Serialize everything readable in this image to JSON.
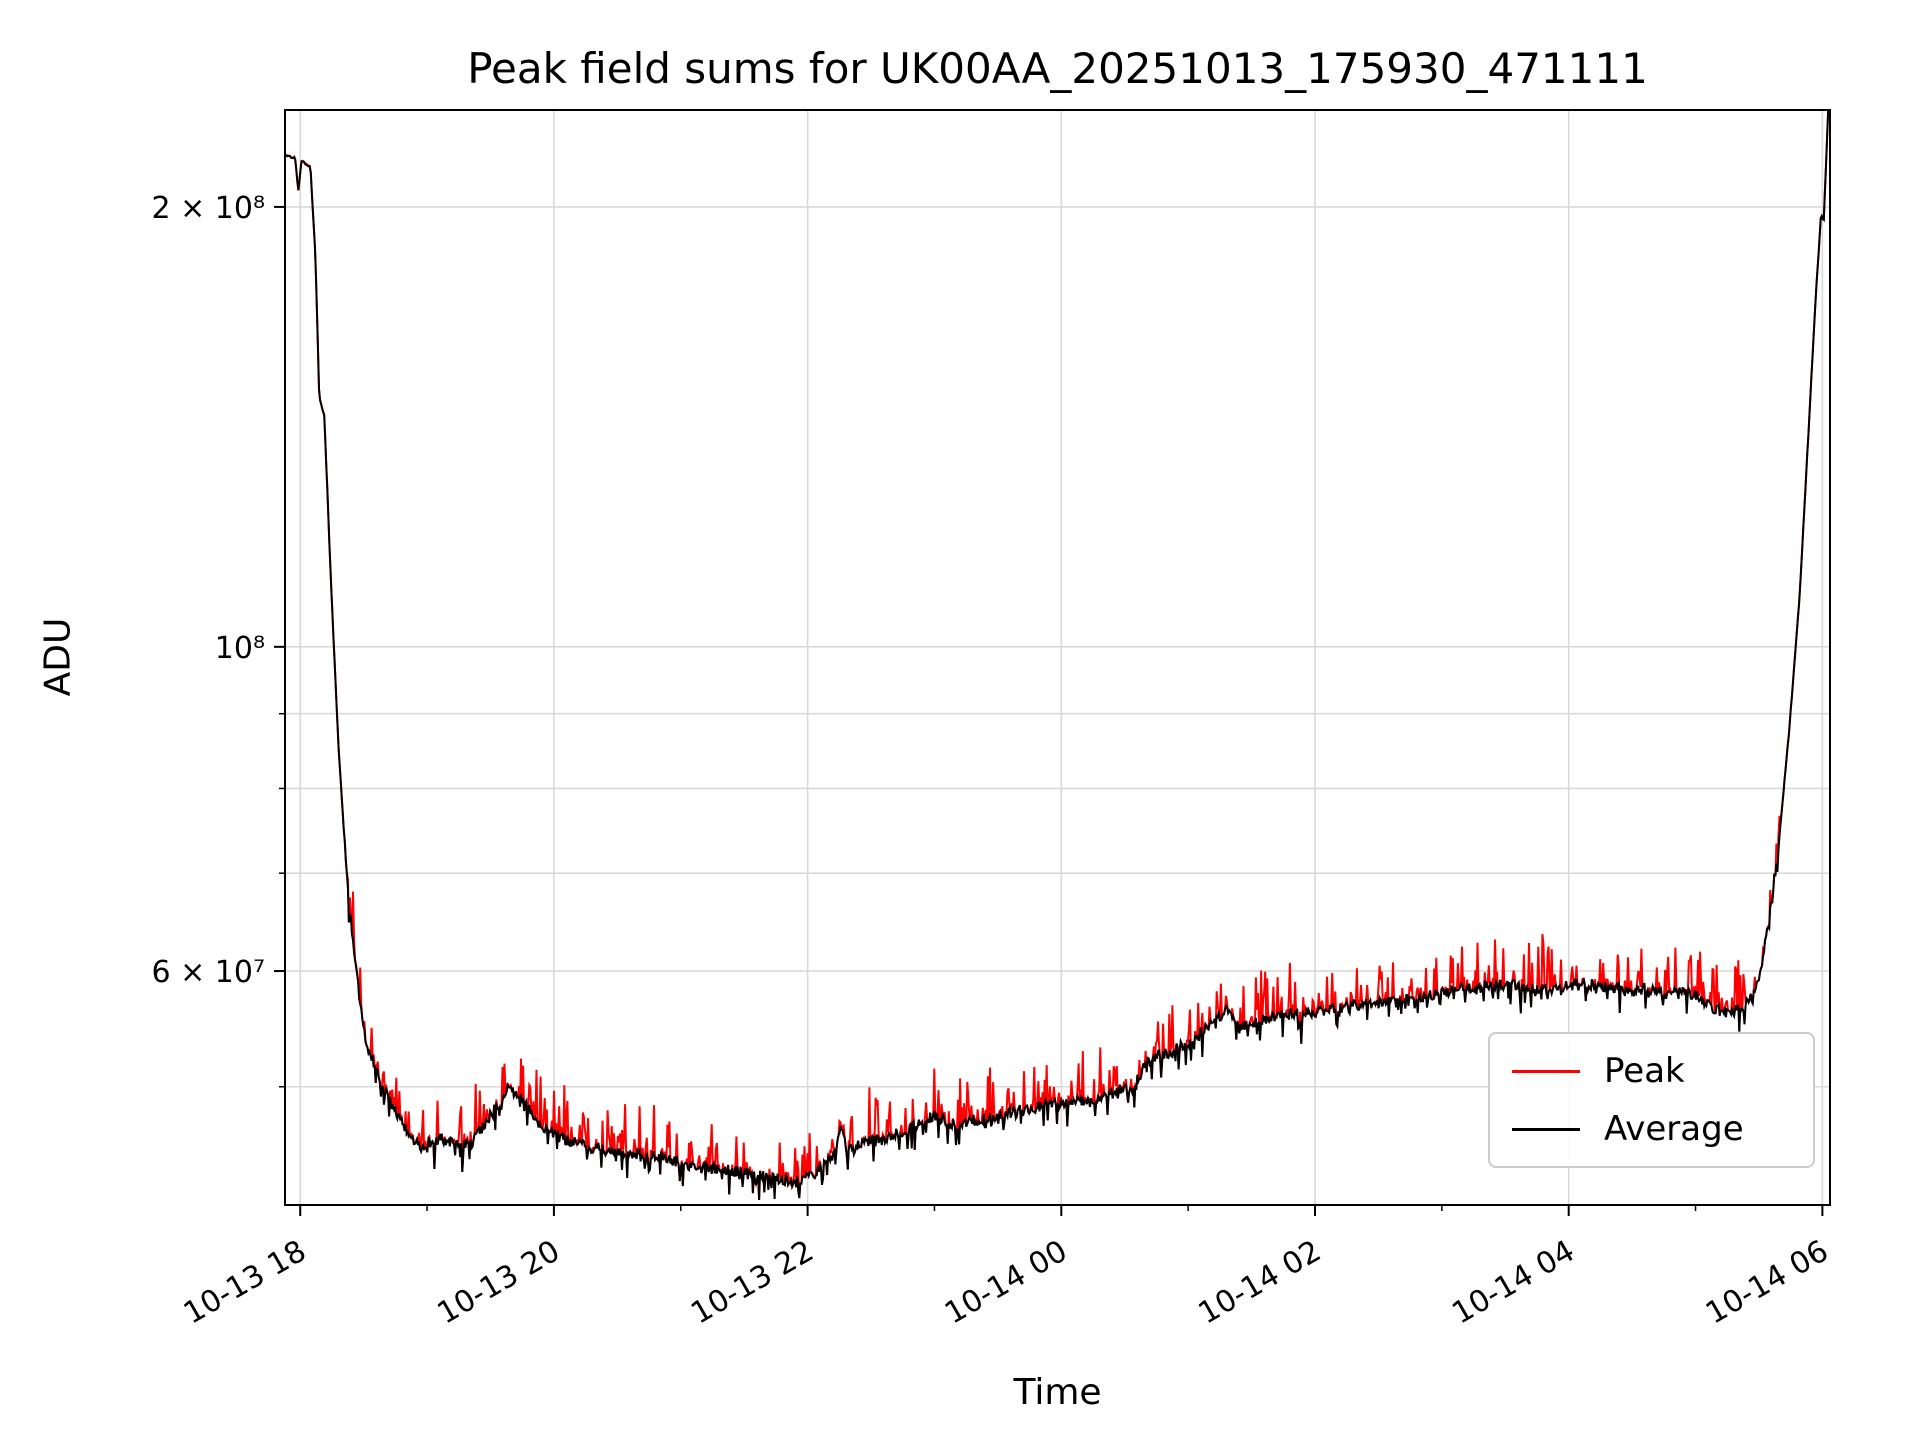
{
  "chart_data": {
    "type": "line",
    "title": "Peak field sums for UK00AA_20251013_175930_471111",
    "xlabel": "Time",
    "ylabel": "ADU",
    "yscale": "log",
    "grid": true,
    "legend_position": "lower right",
    "x_unit_hours_since": "10-13 00:00",
    "xlim": [
      17.88,
      30.06
    ],
    "ylim": [
      41500000,
      233000000
    ],
    "x_ticks": [
      {
        "value": 18,
        "label": "10-13 18"
      },
      {
        "value": 20,
        "label": "10-13 20"
      },
      {
        "value": 22,
        "label": "10-13 22"
      },
      {
        "value": 24,
        "label": "10-14 00"
      },
      {
        "value": 26,
        "label": "10-14 02"
      },
      {
        "value": 28,
        "label": "10-14 04"
      },
      {
        "value": 30,
        "label": "10-14 06"
      }
    ],
    "x_minor_ticks": [
      19,
      21,
      23,
      25,
      27,
      29
    ],
    "x_tick_rotation": 30,
    "y_ticks": [
      {
        "value": 200000000,
        "label": "2 × 10⁸"
      },
      {
        "value": 100000000,
        "label": "10⁸"
      },
      {
        "value": 60000000,
        "label": "6 × 10⁷"
      }
    ],
    "y_minor_ticks": [
      50000000,
      70000000,
      80000000,
      90000000
    ],
    "y_gridlines": [
      50000000,
      60000000,
      70000000,
      80000000,
      90000000,
      100000000,
      200000000
    ],
    "grid_color": "#d9d9d9",
    "series": [
      {
        "name": "Peak",
        "color": "#ff0000"
      },
      {
        "name": "Average",
        "color": "#000000"
      }
    ],
    "average_keypoints": [
      [
        17.88,
        217000000.0
      ],
      [
        17.96,
        216000000.0
      ],
      [
        17.985,
        205000000.0
      ],
      [
        18.01,
        215000000.0
      ],
      [
        18.08,
        213000000.0
      ],
      [
        18.12,
        185000000.0
      ],
      [
        18.15,
        148000000.0
      ],
      [
        18.19,
        144000000.0
      ],
      [
        18.24,
        112000000.0
      ],
      [
        18.3,
        86000000.0
      ],
      [
        18.37,
        69000000.0
      ],
      [
        18.44,
        60000000.0
      ],
      [
        18.52,
        53500000.0
      ],
      [
        18.62,
        51000000.0
      ],
      [
        18.72,
        48500000.0
      ],
      [
        18.82,
        47000000.0
      ],
      [
        18.95,
        45500000.0
      ],
      [
        19.1,
        46200000.0
      ],
      [
        19.25,
        45500000.0
      ],
      [
        19.4,
        46500000.0
      ],
      [
        19.55,
        48500000.0
      ],
      [
        19.65,
        50000000.0
      ],
      [
        19.75,
        49000000.0
      ],
      [
        19.9,
        47000000.0
      ],
      [
        20.05,
        46200000.0
      ],
      [
        20.25,
        45500000.0
      ],
      [
        20.5,
        45200000.0
      ],
      [
        20.8,
        44800000.0
      ],
      [
        21.1,
        44200000.0
      ],
      [
        21.4,
        43800000.0
      ],
      [
        21.7,
        43300000.0
      ],
      [
        21.95,
        43000000.0
      ],
      [
        22.1,
        44000000.0
      ],
      [
        22.22,
        45000000.0
      ],
      [
        22.26,
        47200000.0
      ],
      [
        22.31,
        45200000.0
      ],
      [
        22.45,
        45800000.0
      ],
      [
        22.65,
        46200000.0
      ],
      [
        22.85,
        47000000.0
      ],
      [
        23.0,
        47800000.0
      ],
      [
        23.15,
        47200000.0
      ],
      [
        23.35,
        47500000.0
      ],
      [
        23.6,
        48000000.0
      ],
      [
        23.85,
        48500000.0
      ],
      [
        24.05,
        48800000.0
      ],
      [
        24.3,
        49200000.0
      ],
      [
        24.55,
        50000000.0
      ],
      [
        24.7,
        52200000.0
      ],
      [
        24.85,
        52800000.0
      ],
      [
        25.0,
        53500000.0
      ],
      [
        25.15,
        55000000.0
      ],
      [
        25.3,
        56500000.0
      ],
      [
        25.42,
        55000000.0
      ],
      [
        25.55,
        55500000.0
      ],
      [
        25.75,
        56000000.0
      ],
      [
        26.0,
        56200000.0
      ],
      [
        26.3,
        56800000.0
      ],
      [
        26.6,
        57200000.0
      ],
      [
        26.9,
        57800000.0
      ],
      [
        27.2,
        58500000.0
      ],
      [
        27.5,
        58800000.0
      ],
      [
        27.8,
        58200000.0
      ],
      [
        28.1,
        58800000.0
      ],
      [
        28.4,
        58500000.0
      ],
      [
        28.7,
        58200000.0
      ],
      [
        29.0,
        57800000.0
      ],
      [
        29.15,
        56500000.0
      ],
      [
        29.3,
        56200000.0
      ],
      [
        29.42,
        57200000.0
      ],
      [
        29.5,
        59500000.0
      ],
      [
        29.58,
        65000000.0
      ],
      [
        29.66,
        74000000.0
      ],
      [
        29.74,
        88000000.0
      ],
      [
        29.82,
        108000000.0
      ],
      [
        29.89,
        140000000.0
      ],
      [
        29.95,
        175000000.0
      ],
      [
        29.99,
        198000000.0
      ],
      [
        30.01,
        195000000.0
      ],
      [
        30.03,
        215000000.0
      ],
      [
        30.06,
        250000000.0
      ]
    ],
    "noise": {
      "seed": 42,
      "samples": 1500,
      "smooth_threshold": 75000000,
      "avg_jitter": 0.018,
      "avg_dip": 0.04,
      "avg_jitter_smooth": 0.003,
      "peak_spike": 0.085
    }
  }
}
